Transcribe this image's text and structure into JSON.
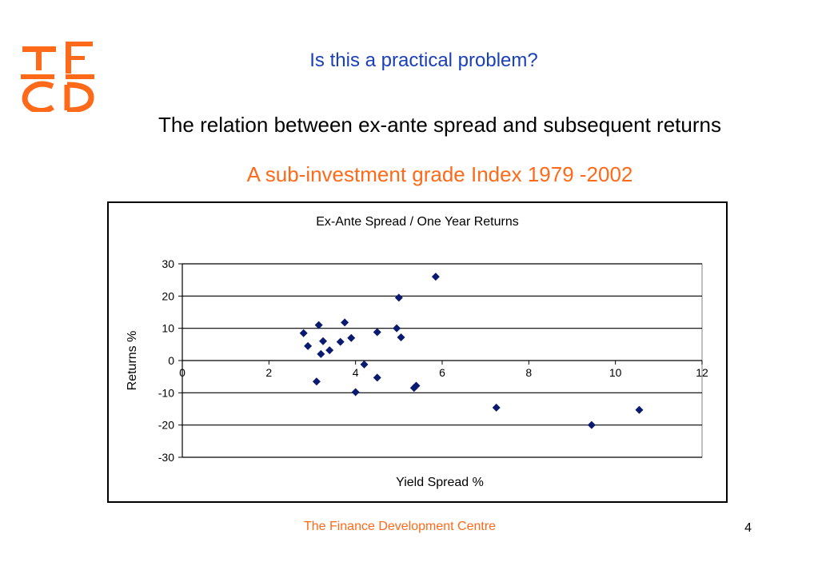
{
  "slide": {
    "title": "Is this a practical problem?",
    "subtitle": "The relation between ex-ante spread and subsequent returns",
    "subtitle2": "A sub-investment grade Index 1979 -2002",
    "footer": "The Finance Development Centre",
    "page_number": "4"
  },
  "colors": {
    "title": "#1a3fb8",
    "accent": "#ff6a1a",
    "marker": "#0a1a6e"
  },
  "chart_data": {
    "type": "scatter",
    "title": "Ex-Ante Spread / One Year Returns",
    "xlabel": "Yield Spread  %",
    "ylabel": "Returns %",
    "xlim": [
      0,
      12
    ],
    "ylim": [
      -30,
      30
    ],
    "xticks": [
      0,
      2,
      4,
      6,
      8,
      10,
      12
    ],
    "yticks": [
      30,
      20,
      10,
      0,
      -10,
      -20,
      -30
    ],
    "grid": "horizontal",
    "marker": "diamond",
    "points": [
      [
        2.8,
        8.5
      ],
      [
        2.9,
        4.5
      ],
      [
        3.1,
        -6.5
      ],
      [
        3.15,
        11
      ],
      [
        3.2,
        2
      ],
      [
        3.25,
        6
      ],
      [
        3.4,
        3.2
      ],
      [
        3.65,
        5.8
      ],
      [
        3.75,
        11.8
      ],
      [
        3.9,
        7
      ],
      [
        4.0,
        -9.8
      ],
      [
        4.2,
        -1.2
      ],
      [
        4.5,
        8.8
      ],
      [
        4.5,
        -5.3
      ],
      [
        4.95,
        10
      ],
      [
        5.0,
        19.5
      ],
      [
        5.05,
        7.2
      ],
      [
        5.35,
        -8.5
      ],
      [
        5.4,
        -7.8
      ],
      [
        5.85,
        26
      ],
      [
        7.25,
        -14.6
      ],
      [
        9.45,
        -20
      ],
      [
        10.55,
        -15.3
      ]
    ]
  }
}
